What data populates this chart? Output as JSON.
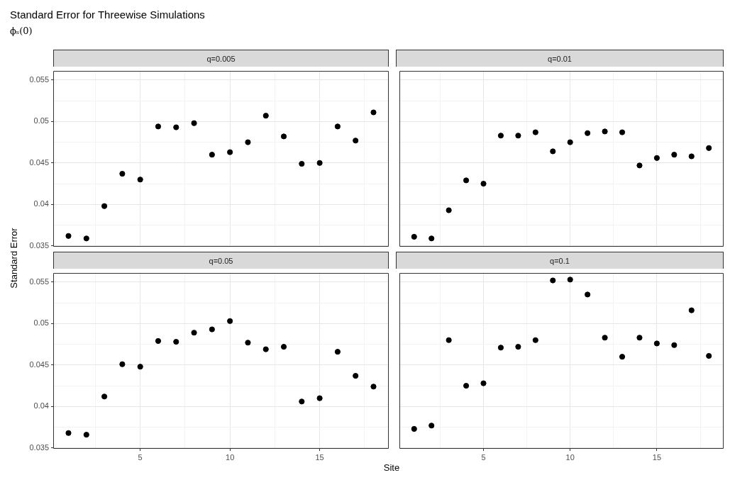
{
  "chart_data": [
    {
      "type": "scatter",
      "title": "q=0.005",
      "annotations": [
        "Standard Error for Threewise Simulations",
        "ϕₛ(0)"
      ],
      "xlabel": "Site",
      "ylabel": "Standard Error",
      "x": [
        1,
        2,
        3,
        4,
        5,
        6,
        7,
        8,
        9,
        10,
        11,
        12,
        13,
        14,
        15,
        16,
        17,
        18
      ],
      "series": [
        {
          "color": "#000000",
          "values": [
            0.0362,
            0.0359,
            0.0398,
            0.0437,
            0.043,
            0.0494,
            0.0493,
            0.0498,
            0.046,
            0.0463,
            0.0475,
            0.0507,
            0.0482,
            0.0449,
            0.045,
            0.0494,
            0.0477,
            0.0511
          ]
        }
      ],
      "xlim": [
        0.15,
        18.85
      ],
      "xticks": [
        {
          "value": 2.5,
          "label": null
        },
        5,
        {
          "value": 7.5,
          "label": null
        },
        10,
        {
          "value": 12.5,
          "label": null
        },
        15,
        {
          "value": 17.5,
          "label": null
        }
      ],
      "ylim": [
        0.0349,
        0.0561
      ],
      "yticks": [
        0.035,
        {
          "value": 0.0375,
          "label": null
        },
        0.04,
        {
          "value": 0.0425,
          "label": null
        },
        0.045,
        {
          "value": 0.0475,
          "label": null
        },
        0.05,
        {
          "value": 0.0525,
          "label": null
        },
        0.055
      ],
      "grid": true,
      "legend": false,
      "marker": "circle",
      "tick_labels": "y"
    },
    {
      "type": "scatter",
      "title": "q=0.01",
      "x": [
        1,
        2,
        3,
        4,
        5,
        6,
        7,
        8,
        9,
        10,
        11,
        12,
        13,
        14,
        15,
        16,
        17,
        18
      ],
      "series": [
        {
          "color": "#000000",
          "values": [
            0.0361,
            0.0359,
            0.0393,
            0.0429,
            0.0425,
            0.0483,
            0.0483,
            0.0487,
            0.0464,
            0.0475,
            0.0486,
            0.0488,
            0.0487,
            0.0447,
            0.0456,
            0.046,
            0.0458,
            0.0468
          ]
        }
      ],
      "xlim": [
        0.15,
        18.85
      ],
      "xticks": [
        {
          "value": 2.5,
          "label": null
        },
        5,
        {
          "value": 7.5,
          "label": null
        },
        10,
        {
          "value": 12.5,
          "label": null
        },
        15,
        {
          "value": 17.5,
          "label": null
        }
      ],
      "ylim": [
        0.0349,
        0.0561
      ],
      "yticks": [
        0.035,
        {
          "value": 0.0375,
          "label": null
        },
        0.04,
        {
          "value": 0.0425,
          "label": null
        },
        0.045,
        {
          "value": 0.0475,
          "label": null
        },
        0.05,
        {
          "value": 0.0525,
          "label": null
        },
        0.055
      ],
      "grid": true,
      "legend": false,
      "marker": "circle",
      "tick_labels": false
    },
    {
      "type": "scatter",
      "title": "q=0.05",
      "x": [
        1,
        2,
        3,
        4,
        5,
        6,
        7,
        8,
        9,
        10,
        11,
        12,
        13,
        14,
        15,
        16,
        17,
        18
      ],
      "series": [
        {
          "color": "#000000",
          "values": [
            0.0368,
            0.0366,
            0.0412,
            0.0451,
            0.0448,
            0.0479,
            0.0478,
            0.0489,
            0.0493,
            0.0503,
            0.0477,
            0.0469,
            0.0472,
            0.0406,
            0.041,
            0.0466,
            0.0437,
            0.0424
          ]
        }
      ],
      "xlim": [
        0.15,
        18.85
      ],
      "xticks": [
        {
          "value": 2.5,
          "label": null
        },
        5,
        {
          "value": 7.5,
          "label": null
        },
        10,
        {
          "value": 12.5,
          "label": null
        },
        15,
        {
          "value": 17.5,
          "label": null
        }
      ],
      "ylim": [
        0.0349,
        0.0561
      ],
      "yticks": [
        0.035,
        {
          "value": 0.0375,
          "label": null
        },
        0.04,
        {
          "value": 0.0425,
          "label": null
        },
        0.045,
        {
          "value": 0.0475,
          "label": null
        },
        0.05,
        {
          "value": 0.0525,
          "label": null
        },
        0.055
      ],
      "grid": true,
      "legend": false,
      "marker": "circle"
    },
    {
      "type": "scatter",
      "title": "q=0.1",
      "x": [
        1,
        2,
        3,
        4,
        5,
        6,
        7,
        8,
        9,
        10,
        11,
        12,
        13,
        14,
        15,
        16,
        17,
        18
      ],
      "series": [
        {
          "color": "#000000",
          "values": [
            0.0373,
            0.0377,
            0.048,
            0.0425,
            0.0428,
            0.0471,
            0.0472,
            0.048,
            0.0552,
            0.0553,
            0.0535,
            0.0483,
            0.046,
            0.0483,
            0.0476,
            0.0474,
            0.0516,
            0.0461
          ]
        }
      ],
      "xlim": [
        0.15,
        18.85
      ],
      "xticks": [
        {
          "value": 2.5,
          "label": null
        },
        5,
        {
          "value": 7.5,
          "label": null
        },
        10,
        {
          "value": 12.5,
          "label": null
        },
        15,
        {
          "value": 17.5,
          "label": null
        }
      ],
      "ylim": [
        0.0349,
        0.0561
      ],
      "yticks": [
        0.035,
        {
          "value": 0.0375,
          "label": null
        },
        0.04,
        {
          "value": 0.0425,
          "label": null
        },
        0.045,
        {
          "value": 0.0475,
          "label": null
        },
        0.05,
        {
          "value": 0.0525,
          "label": null
        },
        0.055
      ],
      "grid": true,
      "legend": false,
      "marker": "circle",
      "tick_labels": "x"
    }
  ]
}
